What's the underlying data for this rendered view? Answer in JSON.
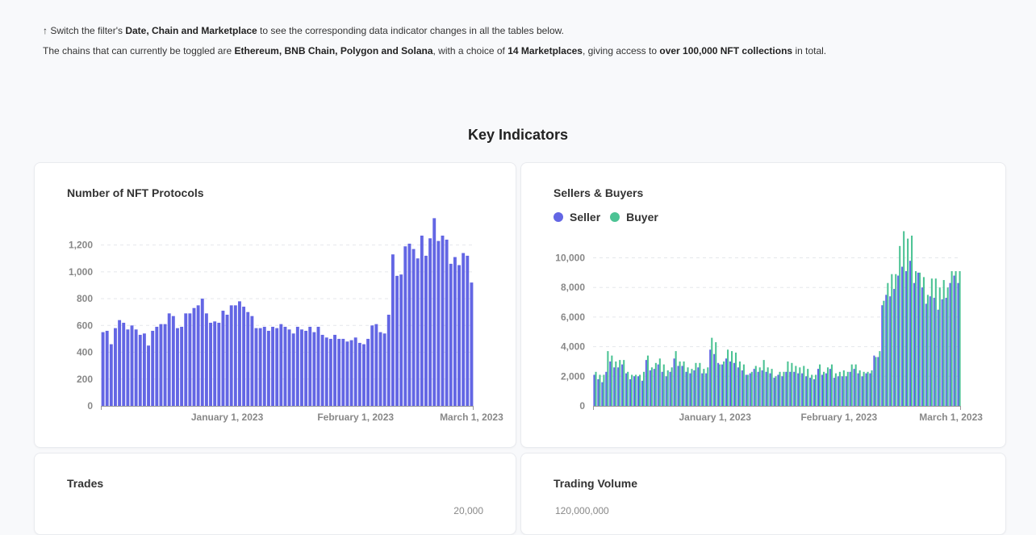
{
  "intro": {
    "line1": [
      {
        "text": "↑ Switch the filter's ",
        "bold": false
      },
      {
        "text": "Date, Chain and Marketplace",
        "bold": true
      },
      {
        "text": " to see the corresponding data indicator changes in all the tables below.",
        "bold": false
      }
    ],
    "line2": [
      {
        "text": "The chains that can currently be toggled are ",
        "bold": false
      },
      {
        "text": "Ethereum, BNB Chain, Polygon and Solana",
        "bold": true
      },
      {
        "text": ", with a choice of ",
        "bold": false
      },
      {
        "text": "14 Marketplaces",
        "bold": true
      },
      {
        "text": ", giving access to ",
        "bold": false
      },
      {
        "text": "over 100,000 NFT collections",
        "bold": true
      },
      {
        "text": " in total.",
        "bold": false
      }
    ]
  },
  "section_title": "Key Indicators",
  "colors": {
    "seller": "#6366e4",
    "buyer": "#4cc394",
    "axis": "#888888",
    "grid": "#e5e7eb"
  },
  "cards": {
    "protocols": {
      "title": "Number of NFT Protocols"
    },
    "sellers_buyers": {
      "title": "Sellers & Buyers",
      "legend": [
        "Seller",
        "Buyer"
      ]
    },
    "trades": {
      "title": "Trades",
      "partial_tick": "20,000"
    },
    "volume": {
      "title": "Trading Volume",
      "partial_tick": "120,000,000"
    }
  },
  "chart_data": [
    {
      "type": "bar",
      "title": "Number of NFT Protocols",
      "x_labels": [
        "January 1, 2023",
        "February 1, 2023",
        "March 1, 2023"
      ],
      "x_label_days": [
        30,
        61,
        89
      ],
      "ylim": [
        0,
        1300
      ],
      "y_ticks": [
        0,
        200,
        400,
        600,
        800,
        1000,
        1200
      ],
      "y_tick_labels": [
        "0",
        "200",
        "400",
        "600",
        "800",
        "1,000",
        "1,200"
      ],
      "values": [
        550,
        560,
        460,
        580,
        640,
        620,
        570,
        600,
        570,
        530,
        540,
        450,
        560,
        590,
        610,
        610,
        690,
        670,
        580,
        590,
        690,
        690,
        730,
        750,
        800,
        690,
        620,
        630,
        620,
        710,
        680,
        750,
        750,
        780,
        740,
        700,
        670,
        580,
        580,
        590,
        560,
        590,
        580,
        610,
        590,
        570,
        540,
        590,
        570,
        560,
        590,
        550,
        590,
        530,
        510,
        500,
        530,
        500,
        500,
        480,
        490,
        510,
        470,
        460,
        500,
        600,
        610,
        550,
        540,
        680,
        1130,
        970,
        980,
        1190,
        1210,
        1170,
        1100,
        1270,
        1120,
        1250,
        1400,
        1230,
        1270,
        1240,
        1060,
        1110,
        1050,
        1140,
        1120,
        920
      ]
    },
    {
      "type": "bar",
      "title": "Sellers & Buyers",
      "x_labels": [
        "January 1, 2023",
        "February 1, 2023",
        "March 1, 2023"
      ],
      "x_label_days": [
        30,
        61,
        89
      ],
      "ylim": [
        0,
        11500
      ],
      "y_ticks": [
        0,
        2000,
        4000,
        6000,
        8000,
        10000
      ],
      "y_tick_labels": [
        "0",
        "2,000",
        "4,000",
        "6,000",
        "8,000",
        "10,000"
      ],
      "series": [
        {
          "name": "Seller",
          "values": [
            2100,
            1800,
            1600,
            2300,
            3000,
            2600,
            2600,
            2800,
            2200,
            1800,
            2000,
            2000,
            1700,
            3100,
            2400,
            2500,
            2800,
            2300,
            2000,
            2300,
            3200,
            2700,
            2700,
            2300,
            2200,
            2400,
            2600,
            2200,
            2200,
            3800,
            3500,
            2900,
            2800,
            3200,
            3000,
            2900,
            2600,
            2400,
            2100,
            2200,
            2500,
            2300,
            2400,
            2300,
            2200,
            1900,
            2100,
            2000,
            2300,
            2300,
            2300,
            2200,
            2200,
            2000,
            1900,
            1800,
            2500,
            2100,
            2200,
            2500,
            1900,
            2000,
            2000,
            2000,
            2300,
            2500,
            2200,
            2000,
            2200,
            2200,
            3400,
            3300,
            6800,
            7500,
            7400,
            7900,
            8800,
            9400,
            9100,
            9800,
            8300,
            9000,
            8000,
            6900,
            7400,
            7300,
            6500,
            7200,
            7300,
            8300,
            8800,
            8300
          ]
        },
        {
          "name": "Buyer",
          "values": [
            2300,
            2100,
            2100,
            3700,
            3400,
            3000,
            3100,
            3100,
            2300,
            2100,
            2100,
            2100,
            2300,
            3400,
            2600,
            2900,
            3200,
            2800,
            2400,
            2600,
            3700,
            3000,
            3000,
            2600,
            2500,
            2900,
            2900,
            2500,
            2600,
            4600,
            4300,
            2800,
            3000,
            3800,
            3700,
            3600,
            3000,
            2800,
            2100,
            2300,
            2700,
            2600,
            3100,
            2600,
            2500,
            2000,
            2300,
            2300,
            3000,
            2900,
            2700,
            2600,
            2700,
            2500,
            2100,
            2100,
            2800,
            2300,
            2600,
            2800,
            2200,
            2300,
            2400,
            2300,
            2800,
            2800,
            2400,
            2300,
            2300,
            2400,
            3300,
            3700,
            7100,
            8300,
            8900,
            8900,
            10800,
            11800,
            11300,
            11500,
            9100,
            9000,
            8700,
            7500,
            8600,
            8600,
            8000,
            8500,
            8000,
            9100,
            9100,
            9100
          ]
        }
      ]
    }
  ]
}
